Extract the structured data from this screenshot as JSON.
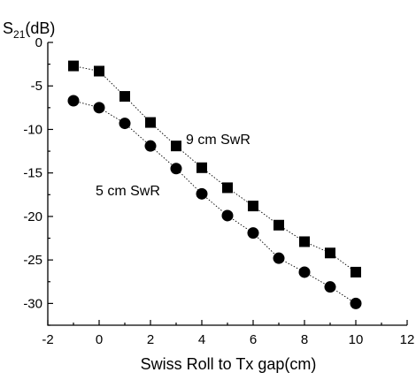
{
  "chart_data": {
    "type": "scatter",
    "ylabel_main": "S",
    "ylabel_sub": "21",
    "ylabel_unit": "(dB)",
    "xlabel": "Swiss Roll to Tx gap(cm)",
    "xlim": [
      -2,
      12
    ],
    "ylim": [
      -32.5,
      0
    ],
    "xticks": [
      -2,
      0,
      2,
      4,
      6,
      8,
      10,
      12
    ],
    "yticks": [
      0,
      -5,
      -10,
      -15,
      -20,
      -25,
      -30
    ],
    "x_minor_step": 1,
    "y_minor_step": 2.5,
    "grid": false,
    "annotations": [
      {
        "text": "9 cm SwR",
        "series": "square"
      },
      {
        "text": "5 cm SwR",
        "series": "circle"
      }
    ],
    "series": [
      {
        "marker": "square",
        "color": "#000000",
        "x": [
          -1,
          0,
          1,
          2,
          3,
          4,
          5,
          6,
          7,
          8,
          9,
          10
        ],
        "y": [
          -2.7,
          -3.3,
          -6.2,
          -9.2,
          -11.9,
          -14.4,
          -16.7,
          -18.8,
          -21.0,
          -22.9,
          -24.2,
          -26.4
        ]
      },
      {
        "marker": "circle",
        "color": "#000000",
        "x": [
          -1,
          0,
          1,
          2,
          3,
          4,
          5,
          6,
          7,
          8,
          9,
          10
        ],
        "y": [
          -6.7,
          -7.5,
          -9.3,
          -11.9,
          -14.5,
          -17.4,
          -19.9,
          -21.9,
          -24.8,
          -26.4,
          -28.1,
          -30.0
        ]
      }
    ]
  }
}
